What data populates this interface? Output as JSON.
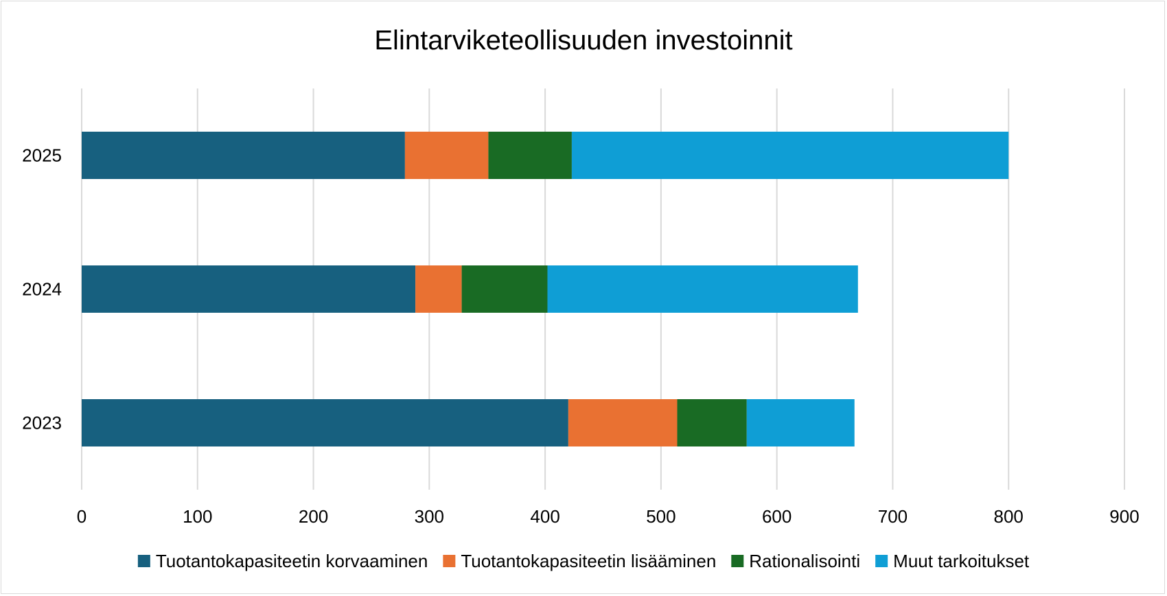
{
  "chart_data": {
    "type": "bar",
    "orientation": "horizontal",
    "stacked": true,
    "title": "Elintarviketeollisuuden investoinnit",
    "xlabel": "",
    "ylabel": "",
    "categories": [
      "2025",
      "2024",
      "2023"
    ],
    "xlim": [
      0,
      900
    ],
    "xticks": [
      0,
      100,
      200,
      300,
      400,
      500,
      600,
      700,
      800,
      900
    ],
    "grid": "vertical",
    "legend_position": "bottom",
    "series": [
      {
        "name": "Tuotantokapasiteetin korvaaminen",
        "color": "#17607f",
        "values": [
          279,
          288,
          420
        ]
      },
      {
        "name": "Tuotantokapasiteetin lisääminen",
        "color": "#e97132",
        "values": [
          72,
          40,
          94
        ]
      },
      {
        "name": "Rationalisointi",
        "color": "#196b24",
        "values": [
          72,
          74,
          60
        ]
      },
      {
        "name": "Muut tarkoitukset",
        "color": "#0f9ed5",
        "values": [
          377,
          268,
          93
        ]
      }
    ]
  }
}
